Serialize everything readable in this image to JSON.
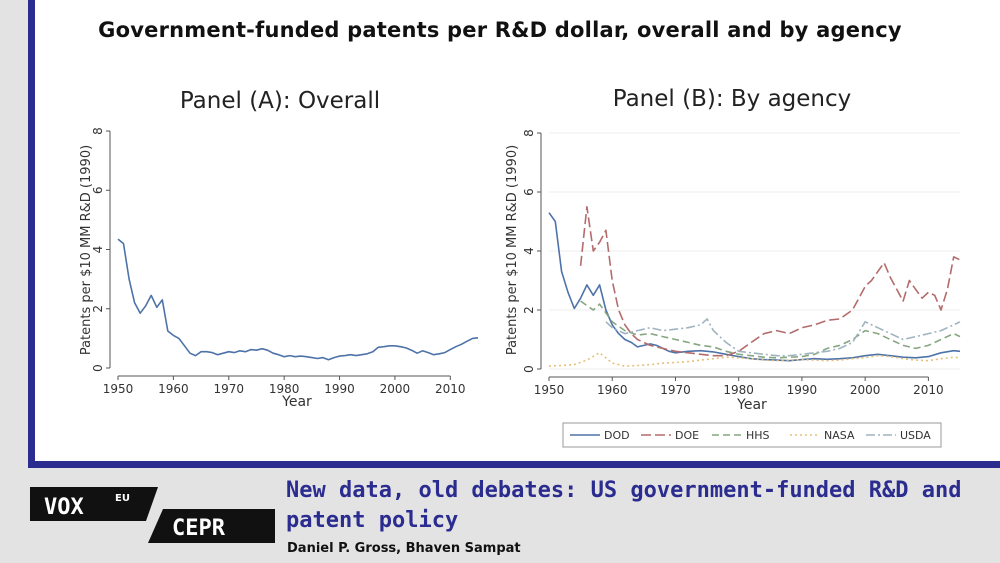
{
  "figure": {
    "title": "Government-funded patents per R&D dollar, overall and by agency"
  },
  "brand": {
    "vox": "VOX",
    "eu": "EU",
    "cepr": "CEPR"
  },
  "article": {
    "title_line1": "New data, old debates: US government-funded R&D and",
    "title_line2": "patent policy",
    "authors": "Daniel P. Gross, Bhaven Sampat"
  },
  "colors": {
    "brand_blue": "#2b2c8f",
    "DOD": "#4e73a8",
    "DOE": "#b46b6b",
    "HHS": "#86a680",
    "NASA": "#e6c07a",
    "USDA": "#9fb4bf"
  },
  "chart_data": [
    {
      "type": "line",
      "title": "Panel (A): Overall",
      "xlabel": "Year",
      "ylabel": "Patents per $10 MM R&D (1990)",
      "xlim": [
        1950,
        2015
      ],
      "ylim": [
        0,
        8
      ],
      "xticks": [
        "1950",
        "1960",
        "1970",
        "1980",
        "1990",
        "2000",
        "2010"
      ],
      "yticks": [
        "0",
        "2",
        "4",
        "6",
        "8"
      ],
      "series": [
        {
          "name": "Overall",
          "color": "#4e73a8",
          "style": "solid",
          "x": [
            1950,
            1951,
            1952,
            1953,
            1954,
            1955,
            1956,
            1957,
            1958,
            1959,
            1960,
            1961,
            1962,
            1963,
            1964,
            1965,
            1966,
            1967,
            1968,
            1969,
            1970,
            1971,
            1972,
            1973,
            1974,
            1975,
            1976,
            1977,
            1978,
            1979,
            1980,
            1981,
            1982,
            1983,
            1984,
            1985,
            1986,
            1987,
            1988,
            1989,
            1990,
            1991,
            1992,
            1993,
            1994,
            1995,
            1996,
            1997,
            1998,
            1999,
            2000,
            2001,
            2002,
            2003,
            2004,
            2005,
            2006,
            2007,
            2008,
            2009,
            2010,
            2011,
            2012,
            2013,
            2014,
            2015
          ],
          "y": [
            4.35,
            4.2,
            3.0,
            2.2,
            1.85,
            2.1,
            2.45,
            2.05,
            2.3,
            1.25,
            1.1,
            1.0,
            0.75,
            0.5,
            0.42,
            0.55,
            0.55,
            0.52,
            0.45,
            0.5,
            0.55,
            0.52,
            0.58,
            0.55,
            0.62,
            0.6,
            0.65,
            0.6,
            0.5,
            0.45,
            0.38,
            0.42,
            0.38,
            0.4,
            0.38,
            0.35,
            0.32,
            0.35,
            0.28,
            0.35,
            0.4,
            0.42,
            0.45,
            0.42,
            0.45,
            0.48,
            0.55,
            0.7,
            0.72,
            0.75,
            0.75,
            0.72,
            0.68,
            0.6,
            0.5,
            0.58,
            0.52,
            0.45,
            0.48,
            0.52,
            0.62,
            0.72,
            0.8,
            0.9,
            1.0,
            1.02
          ]
        }
      ]
    },
    {
      "type": "line",
      "title": "Panel (B): By agency",
      "xlabel": "Year",
      "ylabel": "Patents per $10 MM R&D (1990)",
      "xlim": [
        1950,
        2015
      ],
      "ylim": [
        0,
        8
      ],
      "xticks": [
        "1950",
        "1960",
        "1970",
        "1980",
        "1990",
        "2000",
        "2010"
      ],
      "yticks": [
        "0",
        "2",
        "4",
        "6",
        "8"
      ],
      "legend_position": "bottom",
      "series": [
        {
          "name": "DOD",
          "color": "#4e73a8",
          "style": "solid",
          "x": [
            1950,
            1951,
            1952,
            1953,
            1954,
            1955,
            1956,
            1957,
            1958,
            1959,
            1960,
            1961,
            1962,
            1963,
            1964,
            1965,
            1966,
            1967,
            1968,
            1969,
            1970,
            1972,
            1974,
            1976,
            1978,
            1980,
            1982,
            1984,
            1986,
            1988,
            1990,
            1992,
            1994,
            1996,
            1998,
            2000,
            2002,
            2004,
            2006,
            2008,
            2010,
            2012,
            2014,
            2015
          ],
          "y": [
            5.3,
            5.0,
            3.3,
            2.6,
            2.05,
            2.4,
            2.85,
            2.5,
            2.85,
            2.0,
            1.5,
            1.2,
            1.0,
            0.9,
            0.75,
            0.8,
            0.85,
            0.8,
            0.7,
            0.6,
            0.55,
            0.6,
            0.62,
            0.58,
            0.5,
            0.42,
            0.35,
            0.32,
            0.3,
            0.28,
            0.32,
            0.35,
            0.33,
            0.35,
            0.38,
            0.45,
            0.5,
            0.45,
            0.4,
            0.38,
            0.42,
            0.55,
            0.62,
            0.6
          ]
        },
        {
          "name": "DOE",
          "color": "#b46b6b",
          "style": "dash",
          "x": [
            1955,
            1956,
            1957,
            1958,
            1959,
            1960,
            1961,
            1962,
            1963,
            1964,
            1966,
            1968,
            1970,
            1972,
            1974,
            1976,
            1978,
            1980,
            1982,
            1984,
            1986,
            1988,
            1990,
            1992,
            1994,
            1996,
            1998,
            2000,
            2001,
            2002,
            2003,
            2004,
            2005,
            2006,
            2007,
            2008,
            2009,
            2010,
            2011,
            2012,
            2013,
            2014,
            2015
          ],
          "y": [
            3.5,
            5.5,
            4.0,
            4.3,
            4.7,
            3.0,
            2.0,
            1.5,
            1.2,
            1.0,
            0.8,
            0.7,
            0.6,
            0.55,
            0.5,
            0.45,
            0.45,
            0.6,
            0.9,
            1.2,
            1.3,
            1.2,
            1.4,
            1.5,
            1.65,
            1.7,
            2.0,
            2.8,
            3.0,
            3.3,
            3.6,
            3.1,
            2.7,
            2.3,
            3.0,
            2.7,
            2.4,
            2.6,
            2.5,
            2.0,
            2.7,
            3.8,
            3.7
          ]
        },
        {
          "name": "HHS",
          "color": "#86a680",
          "style": "longdash",
          "x": [
            1955,
            1957,
            1958,
            1960,
            1962,
            1964,
            1966,
            1968,
            1970,
            1972,
            1974,
            1976,
            1978,
            1980,
            1982,
            1984,
            1986,
            1988,
            1990,
            1992,
            1994,
            1996,
            1998,
            2000,
            2002,
            2004,
            2006,
            2008,
            2010,
            2012,
            2014,
            2015
          ],
          "y": [
            2.3,
            2.0,
            2.2,
            1.6,
            1.3,
            1.15,
            1.2,
            1.1,
            1.0,
            0.9,
            0.8,
            0.75,
            0.6,
            0.5,
            0.45,
            0.4,
            0.38,
            0.4,
            0.42,
            0.5,
            0.7,
            0.8,
            1.0,
            1.3,
            1.2,
            1.0,
            0.8,
            0.7,
            0.8,
            1.0,
            1.2,
            1.1
          ]
        },
        {
          "name": "NASA",
          "color": "#e6c07a",
          "style": "dot",
          "x": [
            1950,
            1952,
            1954,
            1956,
            1958,
            1960,
            1962,
            1964,
            1966,
            1968,
            1970,
            1972,
            1974,
            1976,
            1978,
            1980,
            1982,
            1984,
            1986,
            1988,
            1990,
            1992,
            1994,
            1996,
            1998,
            2000,
            2002,
            2004,
            2006,
            2008,
            2010,
            2012,
            2014,
            2015
          ],
          "y": [
            0.1,
            0.12,
            0.15,
            0.3,
            0.55,
            0.2,
            0.1,
            0.12,
            0.15,
            0.2,
            0.22,
            0.25,
            0.3,
            0.35,
            0.4,
            0.38,
            0.35,
            0.3,
            0.28,
            0.3,
            0.32,
            0.3,
            0.28,
            0.3,
            0.35,
            0.38,
            0.45,
            0.42,
            0.35,
            0.3,
            0.28,
            0.35,
            0.4,
            0.38
          ]
        },
        {
          "name": "USDA",
          "color": "#9fb4bf",
          "style": "dashdot",
          "x": [
            1959,
            1960,
            1962,
            1964,
            1966,
            1968,
            1970,
            1972,
            1974,
            1975,
            1976,
            1978,
            1980,
            1982,
            1984,
            1986,
            1988,
            1990,
            1992,
            1994,
            1996,
            1998,
            2000,
            2002,
            2004,
            2006,
            2008,
            2010,
            2012,
            2014,
            2015
          ],
          "y": [
            1.6,
            1.4,
            1.2,
            1.3,
            1.4,
            1.3,
            1.35,
            1.4,
            1.5,
            1.7,
            1.3,
            0.9,
            0.6,
            0.55,
            0.5,
            0.45,
            0.45,
            0.5,
            0.55,
            0.6,
            0.7,
            0.9,
            1.6,
            1.4,
            1.2,
            1.0,
            1.1,
            1.2,
            1.3,
            1.5,
            1.6
          ]
        }
      ]
    }
  ]
}
